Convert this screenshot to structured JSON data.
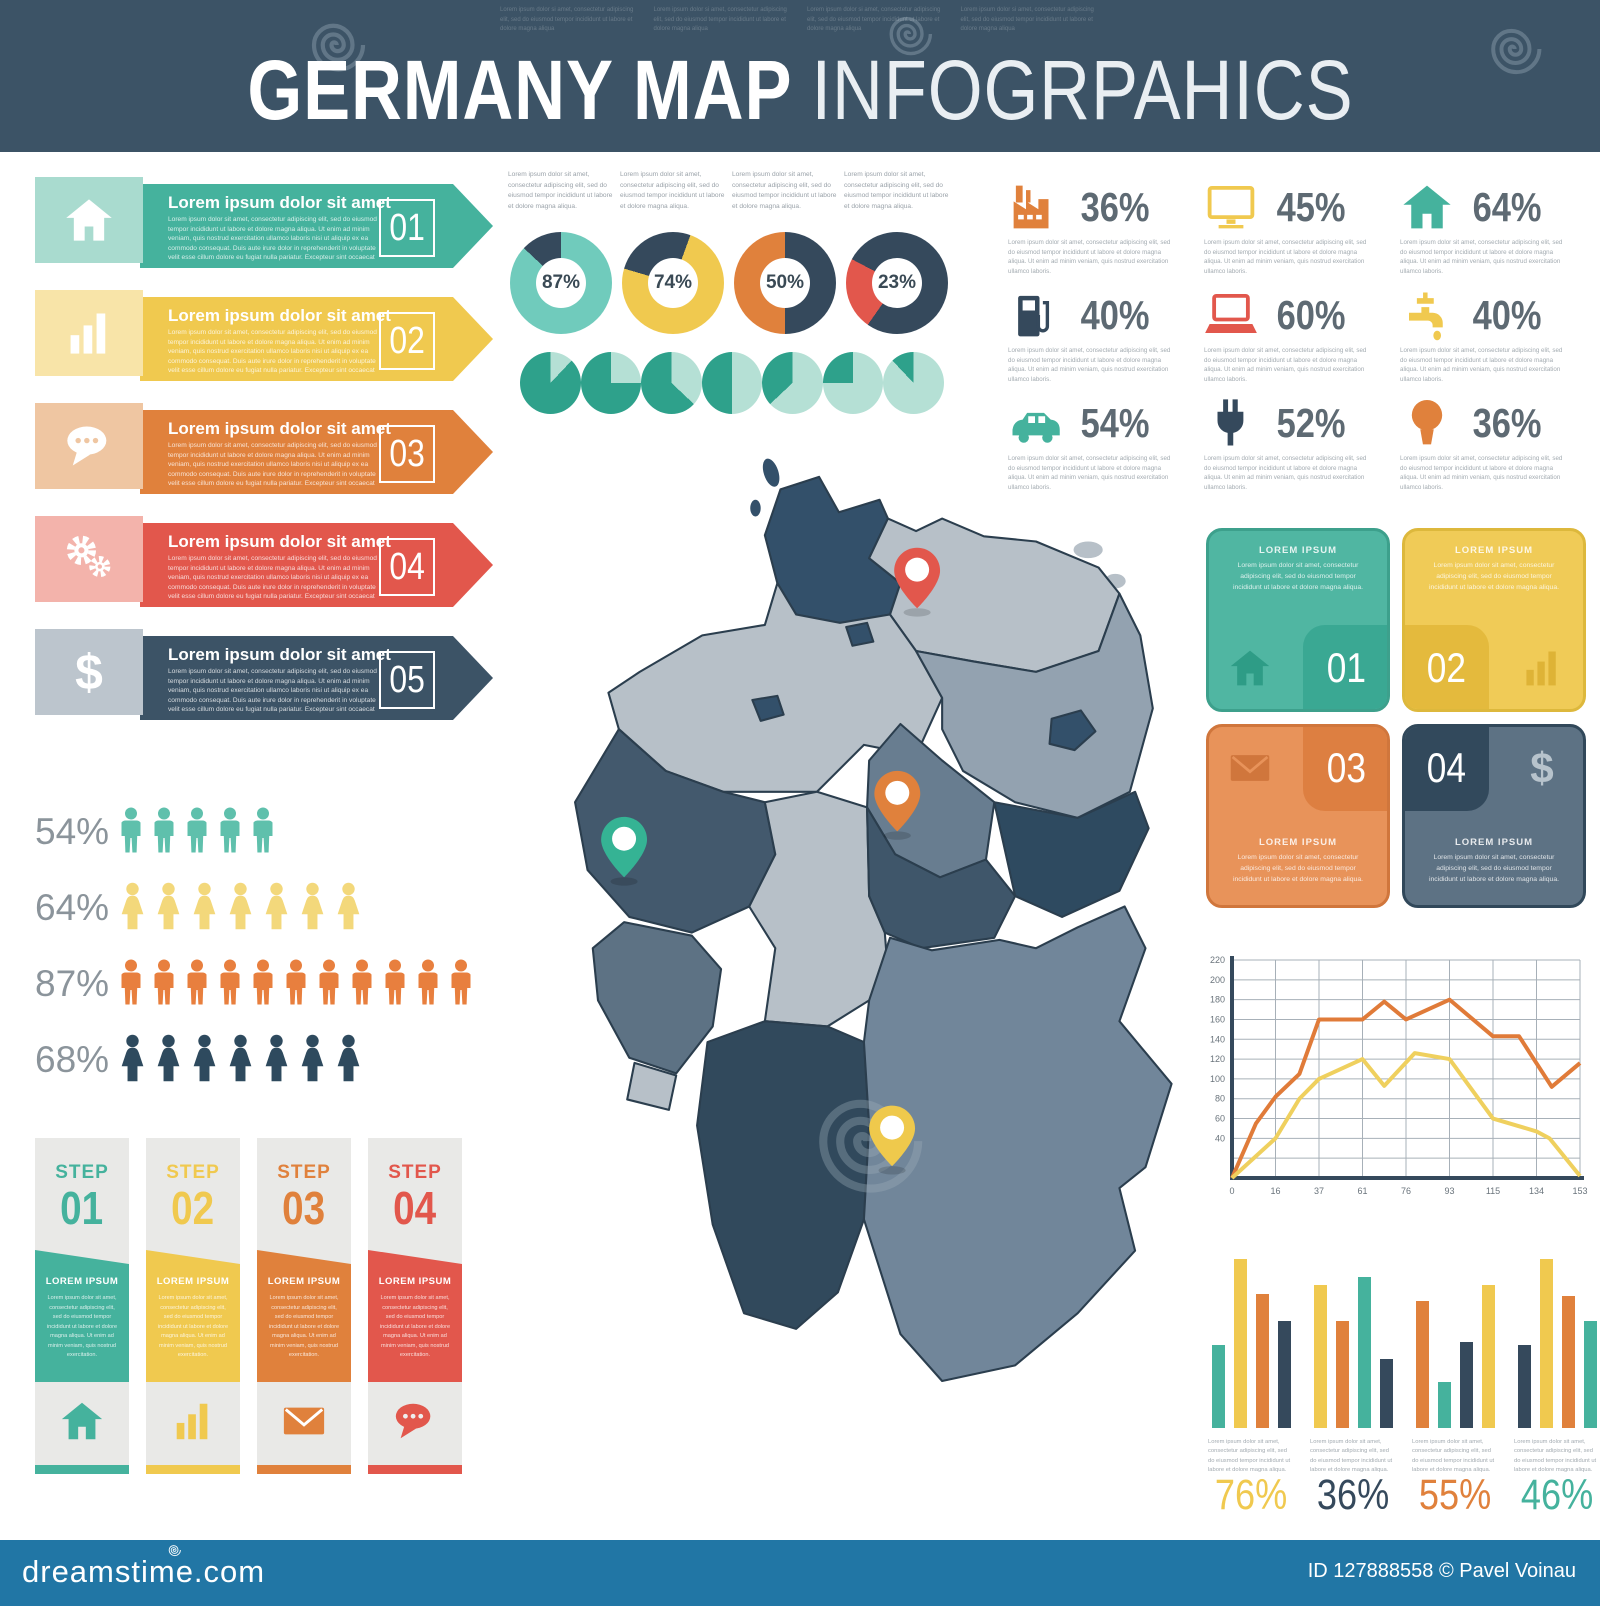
{
  "header": {
    "title_strong": "GERMANY MAP",
    "title_light": "INFOGRPAHICS"
  },
  "texts": {
    "header_note": "Lorem ipsum dolor si amet, consectetur adipiscing elit, sed do eiusmod tempor incididunt ut labore et dolore magna aliqua",
    "banner_title": "Lorem ipsum dolor sit amet",
    "banner_body": "Lorem ipsum dolor sit amet, consectetur adipiscing elit, sed do eiusmod tempor incididunt ut labore et dolore magna aliqua. Ut enim ad minim veniam, quis nostrud exercitation ullamco laboris nisi ut aliquip ex ea commodo consequat. Duis aute irure dolor in reprehenderit in voluptate velit esse cillum dolore eu fugiat nulla pariatur. Excepteur sint occaecat cupidatat non proident, sunt in culpa qui officia deserunt mollit.",
    "pie_caption": "Lorem ipsum dolor sit amet, consectetur adipiscing elit, sed do eiusmod tempor incididunt ut labore et dolore magna aliqua.",
    "stat_caption": "Lorem ipsum dolor sit amet, consectetur adipiscing elit, sed do eiusmod tempor incididunt ut labore et dolore magna aliqua. Ut enim ad minim veniam, quis nostrud exercitation ullamco laboris.",
    "step_body": "Lorem ipsum dolor sit amet, consectetur adipiscing elit, sed do eiusmod tempor incididunt ut labore et dolore magna aliqua. Ut enim ad minim veniam, quis nostrud exercitation.",
    "square_body": "Lorem ipsum dolor sit amet, consectetur adipiscing elit, sed do eiusmod tempor incididunt ut labore et dolore magna aliqua.",
    "bar_caption": "Lorem ipsum dolor sit amet, consectetur adipiscing elit, sed do eiusmod tempor incididunt ut labore et dolore magna aliqua."
  },
  "banners": [
    {
      "num": "01",
      "icon": "home",
      "color": "#45b29d",
      "tile": "#a9dbcf"
    },
    {
      "num": "02",
      "icon": "bar-chart",
      "color": "#f0c94f",
      "tile": "#f8e4a8"
    },
    {
      "num": "03",
      "icon": "chat",
      "color": "#e0813c",
      "tile": "#efc6a2"
    },
    {
      "num": "04",
      "icon": "gears",
      "color": "#e2574c",
      "tile": "#f3b3ab"
    },
    {
      "num": "05",
      "icon": "dollar",
      "color": "#3c5366",
      "tile": "#bcc5cd"
    }
  ],
  "stats": [
    {
      "icon": "factory",
      "color": "#e0813c",
      "value": "36%"
    },
    {
      "icon": "monitor",
      "color": "#f0c94f",
      "value": "45%"
    },
    {
      "icon": "home",
      "color": "#45b29d",
      "value": "64%"
    },
    {
      "icon": "gas",
      "color": "#35495c",
      "value": "40%"
    },
    {
      "icon": "laptop",
      "color": "#e2574c",
      "value": "60%"
    },
    {
      "icon": "faucet",
      "color": "#f0c94f",
      "value": "40%"
    },
    {
      "icon": "car",
      "color": "#45b29d",
      "value": "54%"
    },
    {
      "icon": "plug",
      "color": "#35495c",
      "value": "52%"
    },
    {
      "icon": "bulb",
      "color": "#e0813c",
      "value": "36%"
    }
  ],
  "population": [
    {
      "value": "54%",
      "count": 5,
      "figure": "man",
      "color": "#5fc0ac"
    },
    {
      "value": "64%",
      "count": 7,
      "figure": "woman",
      "color": "#f3d87b"
    },
    {
      "value": "87%",
      "count": 11,
      "figure": "man",
      "color": "#e87f3e"
    },
    {
      "value": "68%",
      "count": 7,
      "figure": "woman",
      "color": "#2e4a5e"
    }
  ],
  "steps": [
    {
      "label": "STEP",
      "num": "01",
      "title": "LOREM IPSUM",
      "icon": "home",
      "color": "#45b29d"
    },
    {
      "label": "STEP",
      "num": "02",
      "title": "LOREM IPSUM",
      "icon": "bar-chart",
      "color": "#f0c94f"
    },
    {
      "label": "STEP",
      "num": "03",
      "title": "LOREM IPSUM",
      "icon": "envelope",
      "color": "#e0813c"
    },
    {
      "label": "STEP",
      "num": "04",
      "title": "LOREM IPSUM",
      "icon": "chat",
      "color": "#e2574c"
    }
  ],
  "squares": [
    {
      "num": "01",
      "title": "LOREM IPSUM",
      "icon": "home",
      "colors": {
        "bg": "#50b6a2",
        "border": "#3da08c",
        "tile": "#3aa893",
        "icon": "#2e9c86"
      }
    },
    {
      "num": "02",
      "title": "LOREM IPSUM",
      "icon": "bar-chart",
      "colors": {
        "bg": "#f0cb57",
        "border": "#ddb83c",
        "tile": "#e4ba3d",
        "icon": "#deb336"
      }
    },
    {
      "num": "03",
      "title": "LOREM IPSUM",
      "icon": "envelope",
      "colors": {
        "bg": "#e8935a",
        "border": "#d0763c",
        "tile": "#dd7f41",
        "icon": "#d0763c"
      }
    },
    {
      "num": "04",
      "title": "LOREM IPSUM",
      "icon": "dollar",
      "colors": {
        "bg": "#5d7284",
        "border": "#31485a",
        "tile": "#32495c",
        "icon": "#b7c3cc"
      }
    }
  ],
  "map": {
    "pins": [
      {
        "name": "red",
        "color": "#e2574c"
      },
      {
        "name": "orange",
        "color": "#e0813c"
      },
      {
        "name": "green",
        "color": "#35b394"
      },
      {
        "name": "yellow",
        "color": "#efc94c"
      }
    ]
  },
  "chart_data": [
    {
      "type": "pie",
      "variant": "donut",
      "title": "donut-1",
      "values": [
        87,
        13
      ],
      "labels": [
        "filled",
        "rest"
      ],
      "colors": [
        "#70cbbc",
        "#35495c"
      ],
      "center_label": "87%",
      "rotate": 0
    },
    {
      "type": "pie",
      "variant": "donut",
      "title": "donut-2",
      "values": [
        74,
        26
      ],
      "labels": [
        "filled",
        "rest"
      ],
      "colors": [
        "#f0c94f",
        "#35495c"
      ],
      "center_label": "74%",
      "rotate": 20
    },
    {
      "type": "pie",
      "variant": "donut",
      "title": "donut-3",
      "values": [
        50,
        50
      ],
      "labels": [
        "filled",
        "rest"
      ],
      "colors": [
        "#e0813c",
        "#35495c"
      ],
      "center_label": "50%",
      "rotate": 180
    },
    {
      "type": "pie",
      "variant": "donut",
      "title": "donut-4",
      "values": [
        23,
        77
      ],
      "labels": [
        "filled",
        "rest"
      ],
      "colors": [
        "#e2574c",
        "#35495c"
      ],
      "center_label": "23%",
      "rotate": 215
    },
    {
      "type": "pie",
      "variant": "mini-series",
      "title": "mini-pies",
      "values": [
        88,
        75,
        63,
        50,
        37,
        25,
        12
      ],
      "colors": [
        "#2ea18b",
        "#b5e0d5"
      ]
    },
    {
      "type": "line",
      "title": "line-chart",
      "x_ticks": [
        0,
        16,
        37,
        61,
        76,
        93,
        115,
        134,
        153
      ],
      "y_ticks": [
        220,
        200,
        180,
        160,
        140,
        120,
        100,
        80,
        60,
        40
      ],
      "ylim": [
        0,
        220
      ],
      "grid": true,
      "series": [
        {
          "name": "orange",
          "color": "#e07b39",
          "points": [
            [
              0,
              0
            ],
            [
              0.55,
              55
            ],
            [
              1,
              82
            ],
            [
              1.55,
              105
            ],
            [
              2,
              160
            ],
            [
              3,
              160
            ],
            [
              3.5,
              178
            ],
            [
              4,
              160
            ],
            [
              5,
              180
            ],
            [
              6,
              143
            ],
            [
              6.6,
              143
            ],
            [
              7.35,
              92
            ],
            [
              8,
              116
            ]
          ]
        },
        {
          "name": "yellow",
          "color": "#efd05e",
          "points": [
            [
              0,
              0
            ],
            [
              1,
              40
            ],
            [
              1.55,
              80
            ],
            [
              2,
              100
            ],
            [
              3,
              120
            ],
            [
              3.5,
              93
            ],
            [
              4.2,
              126
            ],
            [
              5,
              120
            ],
            [
              6,
              60
            ],
            [
              7,
              47
            ],
            [
              7.3,
              40
            ],
            [
              8,
              2
            ]
          ]
        }
      ]
    },
    {
      "type": "bar",
      "title": "bar-groups",
      "groups": [
        {
          "label": "76%",
          "label_color": "#f0c94f",
          "values": [
            48,
            98,
            78,
            62
          ],
          "colors": [
            "#45b29d",
            "#f0c94f",
            "#e0813c",
            "#35495c"
          ]
        },
        {
          "label": "36%",
          "label_color": "#35495c",
          "values": [
            83,
            62,
            88,
            40
          ],
          "colors": [
            "#f0c94f",
            "#e0813c",
            "#45b29d",
            "#35495c"
          ]
        },
        {
          "label": "55%",
          "label_color": "#e0813c",
          "values": [
            74,
            27,
            50,
            83
          ],
          "colors": [
            "#e0813c",
            "#45b29d",
            "#35495c",
            "#f0c94f"
          ]
        },
        {
          "label": "46%",
          "label_color": "#45b29d",
          "values": [
            48,
            98,
            77,
            62
          ],
          "colors": [
            "#35495c",
            "#f0c94f",
            "#e0813c",
            "#45b29d"
          ]
        }
      ]
    }
  ],
  "footer": {
    "logo": "dreamstime.com",
    "credit": "ID 127888558 © Pavel Voinau"
  }
}
